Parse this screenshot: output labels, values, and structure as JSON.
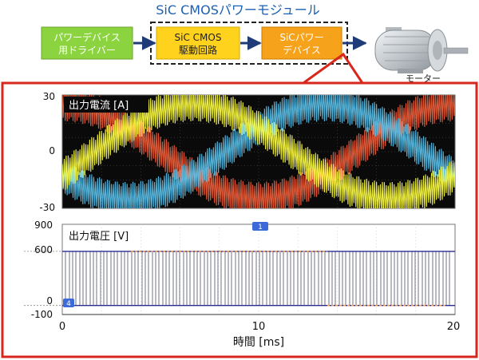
{
  "title": "SiC CMOSパワーモジュール",
  "blocks": {
    "driver_line1": "パワーデバイス",
    "driver_line2": "用ドライバー",
    "sic_line1": "SiC CMOS",
    "sic_line2": "駆動回路",
    "power_line1": "SiCパワー",
    "power_line2": "デバイス"
  },
  "motor_label": "モーター",
  "colors": {
    "title": "#1a5fb4",
    "driver_box": "#8cd43f",
    "module_box": "#ffd21e",
    "power_box": "#f6a21a",
    "arrow": "#1f3b7a",
    "frame": "#d9261c",
    "plot_bg": "#0a0a0a",
    "series_orange": "#f0603c",
    "series_blue": "#5cc2ec",
    "series_yellow": "#ffff44",
    "voltage_trace": "#505064",
    "voltage_orange": "#e8a060",
    "marker": "#3c6ad8"
  },
  "chart_data": [
    {
      "type": "line",
      "title": "出力電流 [A]",
      "ylim": [
        -30,
        30
      ],
      "yticks": [
        "30",
        "0",
        "-30"
      ],
      "xlim": [
        0,
        20
      ],
      "grid": true,
      "series": [
        {
          "color": "orange",
          "amplitude": 25,
          "period_ms": 20,
          "phase_deg": 90
        },
        {
          "color": "blue",
          "amplitude": 25,
          "period_ms": 20,
          "phase_deg": 210
        },
        {
          "color": "yellow",
          "amplitude": 25,
          "period_ms": 20,
          "phase_deg": 330
        }
      ]
    },
    {
      "type": "line",
      "title": "出力電圧 [V]",
      "ylim": [
        -100,
        900
      ],
      "yticks": [
        "900",
        "600",
        "0",
        "-100"
      ],
      "xlim": [
        0,
        20
      ],
      "xticks": [
        "0",
        "10",
        "20"
      ],
      "xlabel": "時間 [ms]",
      "levels": [
        0,
        600
      ],
      "markers": {
        "top": "1",
        "left": "4"
      },
      "grid": true
    }
  ]
}
